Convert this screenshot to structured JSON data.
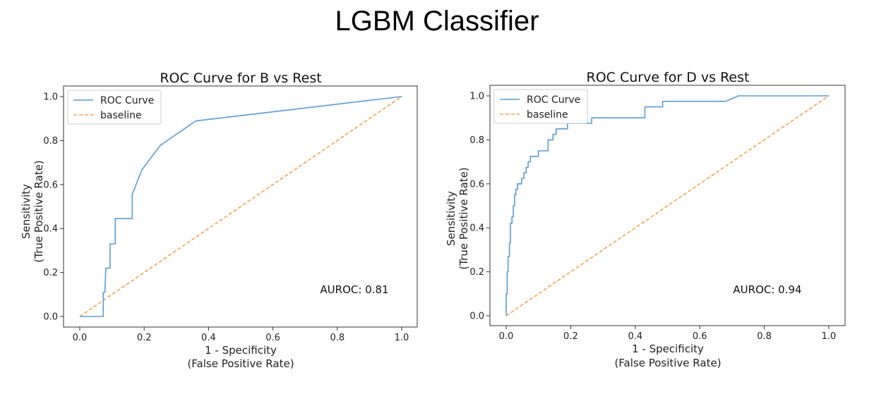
{
  "page": {
    "title": "LGBM Classifier"
  },
  "chart_data": [
    {
      "type": "line",
      "title": "ROC Curve for B vs Rest",
      "xlabel": [
        "1 - Specificity",
        "(False Positive Rate)"
      ],
      "ylabel": [
        "Sensitivity",
        "(True Positive Rate)"
      ],
      "xlim": [
        0.0,
        1.0
      ],
      "ylim": [
        0.0,
        1.0
      ],
      "xticks": [
        "0.0",
        "0.2",
        "0.4",
        "0.6",
        "0.8",
        "1.0"
      ],
      "yticks": [
        "0.0",
        "0.2",
        "0.4",
        "0.6",
        "0.8",
        "1.0"
      ],
      "grid": false,
      "legend": "top-left",
      "annotation": "AUROC: 0.81",
      "series": [
        {
          "name": "ROC Curve",
          "color": "#5b9bd5",
          "style": "solid",
          "x": [
            0.0,
            0.073,
            0.073,
            0.078,
            0.081,
            0.081,
            0.094,
            0.094,
            0.11,
            0.11,
            0.163,
            0.163,
            0.193,
            0.25,
            0.36,
            1.0
          ],
          "y": [
            0.0,
            0.0,
            0.11,
            0.11,
            0.22,
            0.22,
            0.22,
            0.33,
            0.33,
            0.445,
            0.445,
            0.555,
            0.667,
            0.778,
            0.889,
            1.0
          ]
        },
        {
          "name": "baseline",
          "color": "#f5a04a",
          "style": "dashed",
          "x": [
            0.0,
            1.0
          ],
          "y": [
            0.0,
            1.0
          ]
        }
      ]
    },
    {
      "type": "line",
      "title": "ROC Curve for D vs Rest",
      "xlabel": [
        "1 - Specificity",
        "(False Positive Rate)"
      ],
      "ylabel": [
        "Sensitivity",
        "(True Positive Rate)"
      ],
      "xlim": [
        0.0,
        1.0
      ],
      "ylim": [
        0.0,
        1.0
      ],
      "xticks": [
        "0.0",
        "0.2",
        "0.4",
        "0.6",
        "0.8",
        "1.0"
      ],
      "yticks": [
        "0.0",
        "0.2",
        "0.4",
        "0.6",
        "0.8",
        "1.0"
      ],
      "grid": false,
      "legend": "top-left",
      "annotation": "AUROC: 0.94",
      "series": [
        {
          "name": "ROC Curve",
          "color": "#5b9bd5",
          "style": "solid",
          "x": [
            0.0,
            0.0,
            0.003,
            0.003,
            0.006,
            0.006,
            0.01,
            0.01,
            0.013,
            0.013,
            0.018,
            0.018,
            0.022,
            0.022,
            0.026,
            0.026,
            0.03,
            0.03,
            0.035,
            0.035,
            0.048,
            0.048,
            0.055,
            0.055,
            0.062,
            0.062,
            0.068,
            0.068,
            0.075,
            0.075,
            0.1,
            0.1,
            0.13,
            0.13,
            0.145,
            0.145,
            0.155,
            0.155,
            0.19,
            0.19,
            0.21,
            0.21,
            0.265,
            0.265,
            0.43,
            0.43,
            0.485,
            0.485,
            0.68,
            0.72,
            1.0
          ],
          "y": [
            0.0,
            0.1,
            0.1,
            0.2,
            0.2,
            0.27,
            0.27,
            0.33,
            0.33,
            0.42,
            0.42,
            0.45,
            0.45,
            0.5,
            0.5,
            0.55,
            0.55,
            0.575,
            0.575,
            0.6,
            0.6,
            0.625,
            0.625,
            0.65,
            0.65,
            0.675,
            0.675,
            0.7,
            0.7,
            0.725,
            0.725,
            0.75,
            0.75,
            0.8,
            0.8,
            0.825,
            0.825,
            0.85,
            0.85,
            0.875,
            0.875,
            0.875,
            0.875,
            0.9,
            0.9,
            0.95,
            0.95,
            0.975,
            0.975,
            1.0,
            1.0
          ]
        },
        {
          "name": "baseline",
          "color": "#f5a04a",
          "style": "dashed",
          "x": [
            0.0,
            1.0
          ],
          "y": [
            0.0,
            1.0
          ]
        }
      ]
    }
  ]
}
